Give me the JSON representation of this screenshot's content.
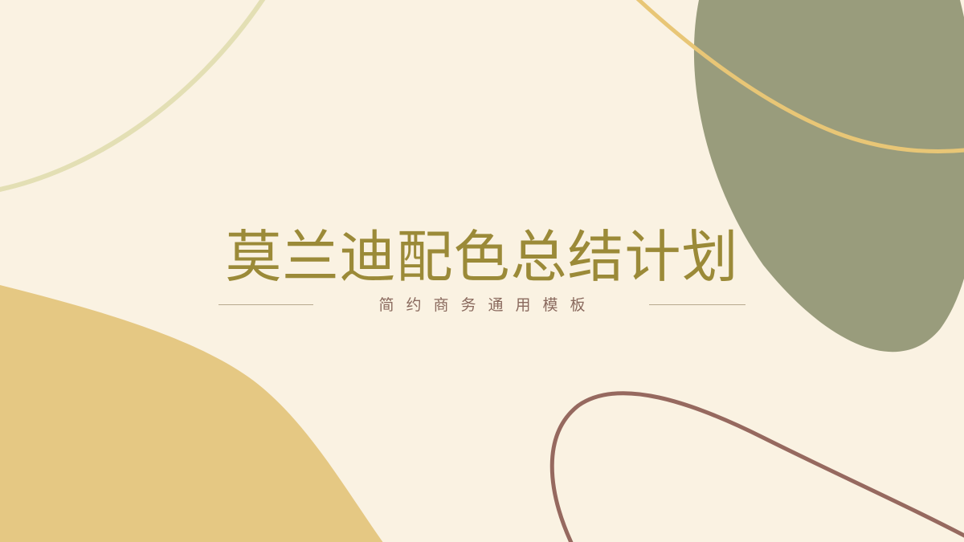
{
  "slide": {
    "title": "莫兰迪配色总结计划",
    "subtitle": "简约商务通用模板"
  },
  "colors": {
    "background": "#faf2e2",
    "title": "#9b8a38",
    "subtitle": "#8a6a5e",
    "sage_blob": "#999c7c",
    "mustard_blob": "#e5c883",
    "gold_line": "#e8c676",
    "pale_line": "#e3dfb4",
    "mauve_line": "#96695f",
    "rule": "#b7a98e"
  }
}
